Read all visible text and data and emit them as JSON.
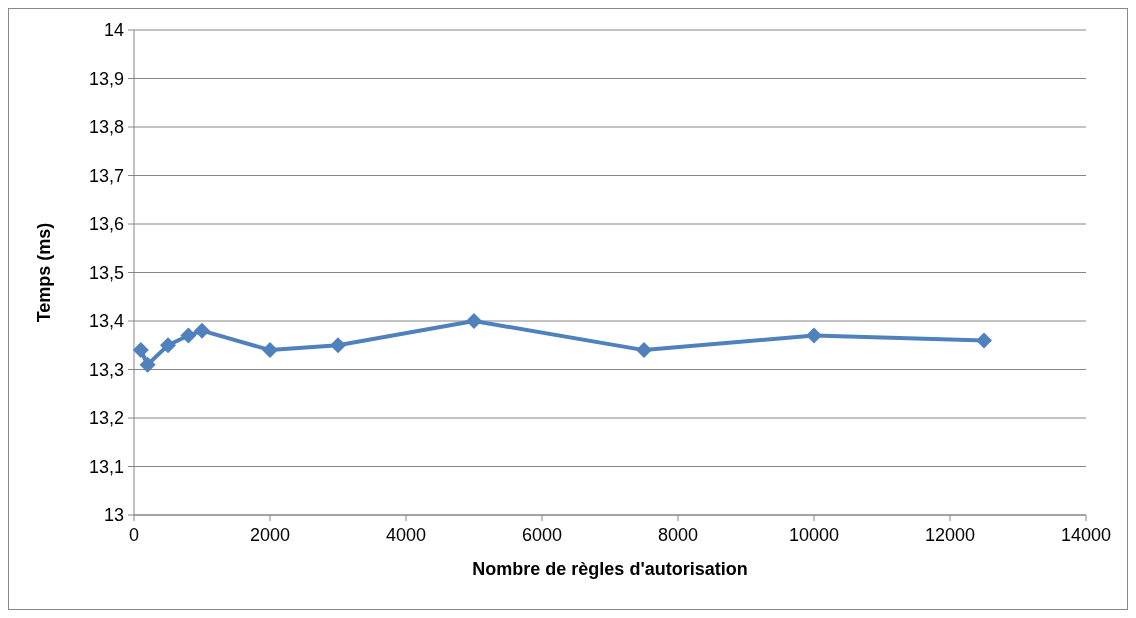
{
  "chart_data": {
    "type": "line",
    "xlabel": "Nombre de règles d'autorisation",
    "ylabel": "Temps (ms)",
    "x": [
      100,
      200,
      500,
      800,
      1000,
      2000,
      3000,
      5000,
      7500,
      10000,
      12500
    ],
    "series": [
      {
        "color": "#4f81bd",
        "values": [
          13.34,
          13.31,
          13.35,
          13.37,
          13.38,
          13.34,
          13.35,
          13.4,
          13.34,
          13.37,
          13.36
        ]
      }
    ],
    "xlim": [
      0,
      14000
    ],
    "xticks": [
      0,
      2000,
      4000,
      6000,
      8000,
      10000,
      12000,
      14000
    ],
    "ylim": [
      13,
      14
    ],
    "yticks": [
      13,
      {
        "value": 13.1,
        "label": "13,1"
      },
      {
        "value": 13.2,
        "label": "13,2"
      },
      {
        "value": 13.3,
        "label": "13,3"
      },
      {
        "value": 13.4,
        "label": "13,4"
      },
      {
        "value": 13.5,
        "label": "13,5"
      },
      {
        "value": 13.6,
        "label": "13,6"
      },
      {
        "value": 13.7,
        "label": "13,7"
      },
      {
        "value": 13.8,
        "label": "13,8"
      },
      {
        "value": 13.9,
        "label": "13,9"
      },
      14
    ],
    "grid": "y",
    "marker": "diamond",
    "line_style": "solid"
  }
}
